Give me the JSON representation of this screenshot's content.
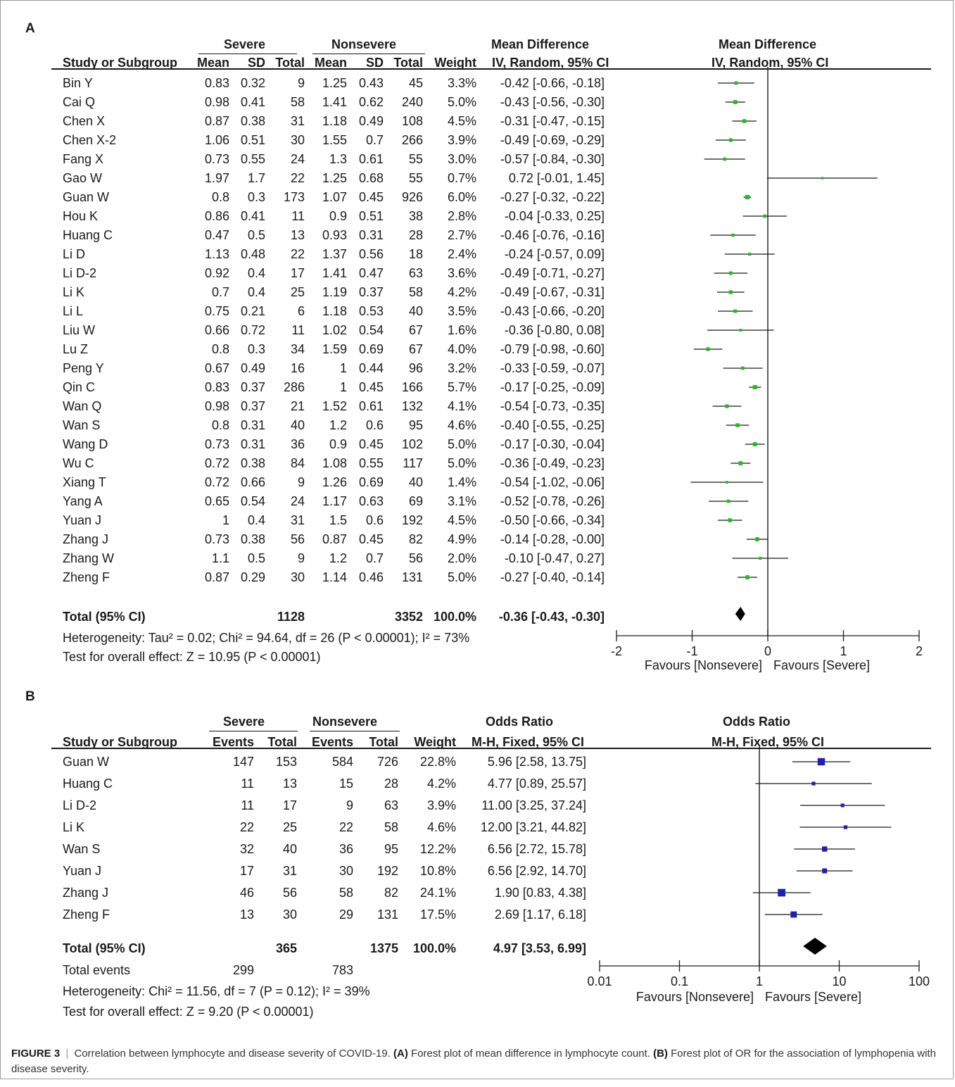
{
  "panel_a_label": "A",
  "panel_b_label": "B",
  "chart_data": [
    {
      "type": "forest",
      "panel": "A",
      "groups": [
        "Severe",
        "Nonsevere"
      ],
      "effect_title": "Mean Difference",
      "effect_method": "IV, Random, 95% CI",
      "columns": [
        "Study or Subgroup",
        "Mean",
        "SD",
        "Total",
        "Mean",
        "SD",
        "Total",
        "Weight"
      ],
      "studies": [
        {
          "study": "Bin Y",
          "mean1": "0.83",
          "sd1": "0.32",
          "n1": "9",
          "mean2": "1.25",
          "sd2": "0.43",
          "n2": "45",
          "weight": "3.3%",
          "ci": "-0.42 [-0.66, -0.18]"
        },
        {
          "study": "Cai Q",
          "mean1": "0.98",
          "sd1": "0.41",
          "n1": "58",
          "mean2": "1.41",
          "sd2": "0.62",
          "n2": "240",
          "weight": "5.0%",
          "ci": "-0.43 [-0.56, -0.30]"
        },
        {
          "study": "Chen X",
          "mean1": "0.87",
          "sd1": "0.38",
          "n1": "31",
          "mean2": "1.18",
          "sd2": "0.49",
          "n2": "108",
          "weight": "4.5%",
          "ci": "-0.31 [-0.47, -0.15]"
        },
        {
          "study": "Chen X-2",
          "mean1": "1.06",
          "sd1": "0.51",
          "n1": "30",
          "mean2": "1.55",
          "sd2": "0.7",
          "n2": "266",
          "weight": "3.9%",
          "ci": "-0.49 [-0.69, -0.29]"
        },
        {
          "study": "Fang X",
          "mean1": "0.73",
          "sd1": "0.55",
          "n1": "24",
          "mean2": "1.3",
          "sd2": "0.61",
          "n2": "55",
          "weight": "3.0%",
          "ci": "-0.57 [-0.84, -0.30]"
        },
        {
          "study": "Gao W",
          "mean1": "1.97",
          "sd1": "1.7",
          "n1": "22",
          "mean2": "1.25",
          "sd2": "0.68",
          "n2": "55",
          "weight": "0.7%",
          "ci": "0.72 [-0.01, 1.45]"
        },
        {
          "study": "Guan W",
          "mean1": "0.8",
          "sd1": "0.3",
          "n1": "173",
          "mean2": "1.07",
          "sd2": "0.45",
          "n2": "926",
          "weight": "6.0%",
          "ci": "-0.27 [-0.32, -0.22]"
        },
        {
          "study": "Hou K",
          "mean1": "0.86",
          "sd1": "0.41",
          "n1": "11",
          "mean2": "0.9",
          "sd2": "0.51",
          "n2": "38",
          "weight": "2.8%",
          "ci": "-0.04 [-0.33, 0.25]"
        },
        {
          "study": "Huang C",
          "mean1": "0.47",
          "sd1": "0.5",
          "n1": "13",
          "mean2": "0.93",
          "sd2": "0.31",
          "n2": "28",
          "weight": "2.7%",
          "ci": "-0.46 [-0.76, -0.16]"
        },
        {
          "study": "Li D",
          "mean1": "1.13",
          "sd1": "0.48",
          "n1": "22",
          "mean2": "1.37",
          "sd2": "0.56",
          "n2": "18",
          "weight": "2.4%",
          "ci": "-0.24 [-0.57, 0.09]"
        },
        {
          "study": "Li D-2",
          "mean1": "0.92",
          "sd1": "0.4",
          "n1": "17",
          "mean2": "1.41",
          "sd2": "0.47",
          "n2": "63",
          "weight": "3.6%",
          "ci": "-0.49 [-0.71, -0.27]"
        },
        {
          "study": "Li K",
          "mean1": "0.7",
          "sd1": "0.4",
          "n1": "25",
          "mean2": "1.19",
          "sd2": "0.37",
          "n2": "58",
          "weight": "4.2%",
          "ci": "-0.49 [-0.67, -0.31]"
        },
        {
          "study": "Li L",
          "mean1": "0.75",
          "sd1": "0.21",
          "n1": "6",
          "mean2": "1.18",
          "sd2": "0.53",
          "n2": "40",
          "weight": "3.5%",
          "ci": "-0.43 [-0.66, -0.20]"
        },
        {
          "study": "Liu W",
          "mean1": "0.66",
          "sd1": "0.72",
          "n1": "11",
          "mean2": "1.02",
          "sd2": "0.54",
          "n2": "67",
          "weight": "1.6%",
          "ci": "-0.36 [-0.80, 0.08]"
        },
        {
          "study": "Lu Z",
          "mean1": "0.8",
          "sd1": "0.3",
          "n1": "34",
          "mean2": "1.59",
          "sd2": "0.69",
          "n2": "67",
          "weight": "4.0%",
          "ci": "-0.79 [-0.98, -0.60]"
        },
        {
          "study": "Peng Y",
          "mean1": "0.67",
          "sd1": "0.49",
          "n1": "16",
          "mean2": "1",
          "sd2": "0.44",
          "n2": "96",
          "weight": "3.2%",
          "ci": "-0.33 [-0.59, -0.07]"
        },
        {
          "study": "Qin C",
          "mean1": "0.83",
          "sd1": "0.37",
          "n1": "286",
          "mean2": "1",
          "sd2": "0.45",
          "n2": "166",
          "weight": "5.7%",
          "ci": "-0.17 [-0.25, -0.09]"
        },
        {
          "study": "Wan Q",
          "mean1": "0.98",
          "sd1": "0.37",
          "n1": "21",
          "mean2": "1.52",
          "sd2": "0.61",
          "n2": "132",
          "weight": "4.1%",
          "ci": "-0.54 [-0.73, -0.35]"
        },
        {
          "study": "Wan S",
          "mean1": "0.8",
          "sd1": "0.31",
          "n1": "40",
          "mean2": "1.2",
          "sd2": "0.6",
          "n2": "95",
          "weight": "4.6%",
          "ci": "-0.40 [-0.55, -0.25]"
        },
        {
          "study": "Wang D",
          "mean1": "0.73",
          "sd1": "0.31",
          "n1": "36",
          "mean2": "0.9",
          "sd2": "0.45",
          "n2": "102",
          "weight": "5.0%",
          "ci": "-0.17 [-0.30, -0.04]"
        },
        {
          "study": "Wu C",
          "mean1": "0.72",
          "sd1": "0.38",
          "n1": "84",
          "mean2": "1.08",
          "sd2": "0.55",
          "n2": "117",
          "weight": "5.0%",
          "ci": "-0.36 [-0.49, -0.23]"
        },
        {
          "study": "Xiang T",
          "mean1": "0.72",
          "sd1": "0.66",
          "n1": "9",
          "mean2": "1.26",
          "sd2": "0.69",
          "n2": "40",
          "weight": "1.4%",
          "ci": "-0.54 [-1.02, -0.06]"
        },
        {
          "study": "Yang A",
          "mean1": "0.65",
          "sd1": "0.54",
          "n1": "24",
          "mean2": "1.17",
          "sd2": "0.63",
          "n2": "69",
          "weight": "3.1%",
          "ci": "-0.52 [-0.78, -0.26]"
        },
        {
          "study": "Yuan J",
          "mean1": "1",
          "sd1": "0.4",
          "n1": "31",
          "mean2": "1.5",
          "sd2": "0.6",
          "n2": "192",
          "weight": "4.5%",
          "ci": "-0.50 [-0.66, -0.34]"
        },
        {
          "study": "Zhang J",
          "mean1": "0.73",
          "sd1": "0.38",
          "n1": "56",
          "mean2": "0.87",
          "sd2": "0.45",
          "n2": "82",
          "weight": "4.9%",
          "ci": "-0.14 [-0.28, -0.00]"
        },
        {
          "study": "Zhang W",
          "mean1": "1.1",
          "sd1": "0.5",
          "n1": "9",
          "mean2": "1.2",
          "sd2": "0.7",
          "n2": "56",
          "weight": "2.0%",
          "ci": "-0.10 [-0.47, 0.27]"
        },
        {
          "study": "Zheng F",
          "mean1": "0.87",
          "sd1": "0.29",
          "n1": "30",
          "mean2": "1.14",
          "sd2": "0.46",
          "n2": "131",
          "weight": "5.0%",
          "ci": "-0.27 [-0.40, -0.14]"
        }
      ],
      "estimates": [
        {
          "point": -0.42,
          "lo": -0.66,
          "hi": -0.18
        },
        {
          "point": -0.43,
          "lo": -0.56,
          "hi": -0.3
        },
        {
          "point": -0.31,
          "lo": -0.47,
          "hi": -0.15
        },
        {
          "point": -0.49,
          "lo": -0.69,
          "hi": -0.29
        },
        {
          "point": -0.57,
          "lo": -0.84,
          "hi": -0.3
        },
        {
          "point": 0.72,
          "lo": -0.01,
          "hi": 1.45
        },
        {
          "point": -0.27,
          "lo": -0.32,
          "hi": -0.22
        },
        {
          "point": -0.04,
          "lo": -0.33,
          "hi": 0.25
        },
        {
          "point": -0.46,
          "lo": -0.76,
          "hi": -0.16
        },
        {
          "point": -0.24,
          "lo": -0.57,
          "hi": 0.09
        },
        {
          "point": -0.49,
          "lo": -0.71,
          "hi": -0.27
        },
        {
          "point": -0.49,
          "lo": -0.67,
          "hi": -0.31
        },
        {
          "point": -0.43,
          "lo": -0.66,
          "hi": -0.2
        },
        {
          "point": -0.36,
          "lo": -0.8,
          "hi": 0.08
        },
        {
          "point": -0.79,
          "lo": -0.98,
          "hi": -0.6
        },
        {
          "point": -0.33,
          "lo": -0.59,
          "hi": -0.07
        },
        {
          "point": -0.17,
          "lo": -0.25,
          "hi": -0.09
        },
        {
          "point": -0.54,
          "lo": -0.73,
          "hi": -0.35
        },
        {
          "point": -0.4,
          "lo": -0.55,
          "hi": -0.25
        },
        {
          "point": -0.17,
          "lo": -0.3,
          "hi": -0.04
        },
        {
          "point": -0.36,
          "lo": -0.49,
          "hi": -0.23
        },
        {
          "point": -0.54,
          "lo": -1.02,
          "hi": -0.06
        },
        {
          "point": -0.52,
          "lo": -0.78,
          "hi": -0.26
        },
        {
          "point": -0.5,
          "lo": -0.66,
          "hi": -0.34
        },
        {
          "point": -0.14,
          "lo": -0.28,
          "hi": -0.0
        },
        {
          "point": -0.1,
          "lo": -0.47,
          "hi": 0.27
        },
        {
          "point": -0.27,
          "lo": -0.4,
          "hi": -0.14
        }
      ],
      "total": {
        "label": "Total (95% CI)",
        "n1": "1128",
        "n2": "3352",
        "weight": "100.0%",
        "ci": "-0.36 [-0.43, -0.30]",
        "point": -0.36,
        "lo": -0.43,
        "hi": -0.3
      },
      "heterogeneity": "Heterogeneity: Tau² = 0.02; Chi² = 94.64, df = 26 (P < 0.00001); I² = 73%",
      "overall_effect": "Test for overall effect: Z = 10.95 (P < 0.00001)",
      "x_scale": "linear",
      "xlim": [
        -2,
        2
      ],
      "x_ticks": [
        -2,
        -1,
        0,
        1,
        2
      ],
      "x_tick_labels": [
        "-2",
        "-1",
        "0",
        "1",
        "2"
      ],
      "favours_left": "Favours [Nonsevere]",
      "favours_right": "Favours [Severe]",
      "marker_color": "#2db52d"
    },
    {
      "type": "forest",
      "panel": "B",
      "groups": [
        "Severe",
        "Nonsevere"
      ],
      "effect_title": "Odds Ratio",
      "effect_method": "M-H, Fixed, 95% CI",
      "columns": [
        "Study or Subgroup",
        "Events",
        "Total",
        "Events",
        "Total",
        "Weight"
      ],
      "studies": [
        {
          "study": "Guan W",
          "e1": "147",
          "n1": "153",
          "e2": "584",
          "n2": "726",
          "weight": "22.8%",
          "ci": "5.96 [2.58, 13.75]"
        },
        {
          "study": "Huang C",
          "e1": "11",
          "n1": "13",
          "e2": "15",
          "n2": "28",
          "weight": "4.2%",
          "ci": "4.77 [0.89, 25.57]"
        },
        {
          "study": "Li D-2",
          "e1": "11",
          "n1": "17",
          "e2": "9",
          "n2": "63",
          "weight": "3.9%",
          "ci": "11.00 [3.25, 37.24]"
        },
        {
          "study": "Li K",
          "e1": "22",
          "n1": "25",
          "e2": "22",
          "n2": "58",
          "weight": "4.6%",
          "ci": "12.00 [3.21, 44.82]"
        },
        {
          "study": "Wan S",
          "e1": "32",
          "n1": "40",
          "e2": "36",
          "n2": "95",
          "weight": "12.2%",
          "ci": "6.56 [2.72, 15.78]"
        },
        {
          "study": "Yuan J",
          "e1": "17",
          "n1": "31",
          "e2": "30",
          "n2": "192",
          "weight": "10.8%",
          "ci": "6.56 [2.92, 14.70]"
        },
        {
          "study": "Zhang J",
          "e1": "46",
          "n1": "56",
          "e2": "58",
          "n2": "82",
          "weight": "24.1%",
          "ci": "1.90 [0.83, 4.38]"
        },
        {
          "study": "Zheng F",
          "e1": "13",
          "n1": "30",
          "e2": "29",
          "n2": "131",
          "weight": "17.5%",
          "ci": "2.69 [1.17, 6.18]"
        }
      ],
      "estimates": [
        {
          "point": 5.96,
          "lo": 2.58,
          "hi": 13.75
        },
        {
          "point": 4.77,
          "lo": 0.89,
          "hi": 25.57
        },
        {
          "point": 11.0,
          "lo": 3.25,
          "hi": 37.24
        },
        {
          "point": 12.0,
          "lo": 3.21,
          "hi": 44.82
        },
        {
          "point": 6.56,
          "lo": 2.72,
          "hi": 15.78
        },
        {
          "point": 6.56,
          "lo": 2.92,
          "hi": 14.7
        },
        {
          "point": 1.9,
          "lo": 0.83,
          "hi": 4.38
        },
        {
          "point": 2.69,
          "lo": 1.17,
          "hi": 6.18
        }
      ],
      "total": {
        "label": "Total (95% CI)",
        "n1": "365",
        "n2": "1375",
        "weight": "100.0%",
        "ci": "4.97 [3.53, 6.99]",
        "point": 4.97,
        "lo": 3.53,
        "hi": 6.99
      },
      "total_events": {
        "label": "Total events",
        "e1": "299",
        "e2": "783"
      },
      "heterogeneity": "Heterogeneity: Chi² = 11.56, df = 7 (P = 0.12); I² = 39%",
      "overall_effect": "Test for overall effect: Z = 9.20 (P < 0.00001)",
      "x_scale": "log",
      "xlim": [
        0.01,
        100
      ],
      "x_ticks": [
        0.01,
        0.1,
        1,
        10,
        100
      ],
      "x_tick_labels": [
        "0.01",
        "0.1",
        "1",
        "10",
        "100"
      ],
      "favours_left": "Favours [Nonsevere]",
      "favours_right": "Favours [Severe]",
      "marker_color": "#1f1fb0"
    }
  ],
  "caption": {
    "figure_label": "FIGURE 3",
    "separator": "|",
    "text1": "Correlation between lymphocyte and disease severity of COVID-19.",
    "a_ref": "(A)",
    "text2": "Forest plot of mean difference in lymphocyte count.",
    "b_ref": "(B)",
    "text3": "Forest plot of OR for the association of lymphopenia with disease severity."
  }
}
